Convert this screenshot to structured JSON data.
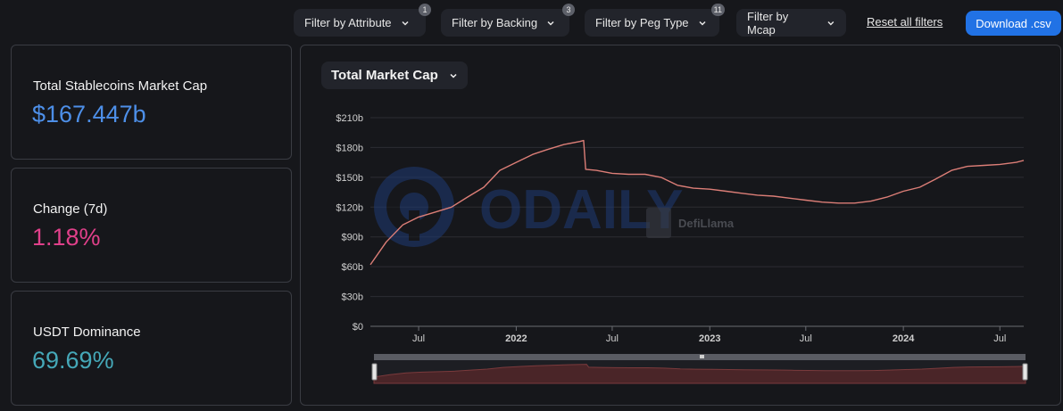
{
  "filters": [
    {
      "label": "Filter by Attribute",
      "badge": "1"
    },
    {
      "label": "Filter by Backing",
      "badge": "3"
    },
    {
      "label": "Filter by Peg Type",
      "badge": "11"
    },
    {
      "label": "Filter by Mcap",
      "badge": ""
    }
  ],
  "reset_label": "Reset all filters",
  "download_label": "Download .csv",
  "stats": [
    {
      "label": "Total Stablecoins Market Cap",
      "value": "$167.447b",
      "color": "#4d8fe8"
    },
    {
      "label": "Change (7d)",
      "value": "1.18%",
      "color": "#e0408a"
    },
    {
      "label": "USDT Dominance",
      "value": "69.69%",
      "color": "#45a8b8"
    }
  ],
  "chart_selector": "Total Market Cap",
  "watermarks": {
    "odaily": "ODAILY",
    "defillama": "DefiLlama"
  },
  "colors": {
    "line": "#dc7e77",
    "grid": "#2c2d33",
    "brush_fill": "#4a2528"
  },
  "chart_data": {
    "type": "line",
    "title": "",
    "xlabel": "",
    "ylabel": "",
    "ylim": [
      0,
      210
    ],
    "xlim": [
      "2021-04-01",
      "2024-08-15"
    ],
    "y_ticks": [
      0,
      30,
      60,
      90,
      120,
      150,
      180,
      210
    ],
    "y_tick_labels": [
      "$0",
      "$30b",
      "$60b",
      "$90b",
      "$120b",
      "$150b",
      "$180b",
      "$210b"
    ],
    "x_ticks": [
      {
        "date": "2021-07-01",
        "label": "Jul",
        "bold": false
      },
      {
        "date": "2022-01-01",
        "label": "2022",
        "bold": true
      },
      {
        "date": "2022-07-01",
        "label": "Jul",
        "bold": false
      },
      {
        "date": "2023-01-01",
        "label": "2023",
        "bold": true
      },
      {
        "date": "2023-07-01",
        "label": "Jul",
        "bold": false
      },
      {
        "date": "2024-01-01",
        "label": "2024",
        "bold": true
      },
      {
        "date": "2024-07-01",
        "label": "Jul",
        "bold": false
      }
    ],
    "grid": true,
    "legend": "none",
    "series": [
      {
        "name": "",
        "x": [
          "2021-04-01",
          "2021-05-01",
          "2021-06-01",
          "2021-07-01",
          "2021-08-01",
          "2021-09-01",
          "2021-10-01",
          "2021-11-01",
          "2021-12-01",
          "2022-01-01",
          "2022-02-01",
          "2022-03-01",
          "2022-04-01",
          "2022-05-01",
          "2022-05-08",
          "2022-05-12",
          "2022-06-01",
          "2022-07-01",
          "2022-08-01",
          "2022-09-01",
          "2022-10-01",
          "2022-11-01",
          "2022-12-01",
          "2023-01-01",
          "2023-02-01",
          "2023-03-01",
          "2023-04-01",
          "2023-05-01",
          "2023-06-01",
          "2023-07-01",
          "2023-08-01",
          "2023-09-01",
          "2023-10-01",
          "2023-11-01",
          "2023-12-01",
          "2024-01-01",
          "2024-02-01",
          "2024-03-01",
          "2024-04-01",
          "2024-05-01",
          "2024-06-01",
          "2024-07-01",
          "2024-08-01",
          "2024-08-15"
        ],
        "y": [
          62,
          85,
          102,
          110,
          115,
          120,
          130,
          140,
          157,
          165,
          173,
          178,
          183,
          186,
          187,
          158,
          157,
          154,
          153,
          153,
          150,
          142,
          139,
          138,
          136,
          134,
          132,
          131,
          129,
          127,
          125,
          124,
          124,
          126,
          130,
          136,
          140,
          148,
          157,
          161,
          162,
          163,
          165,
          167
        ]
      }
    ]
  }
}
